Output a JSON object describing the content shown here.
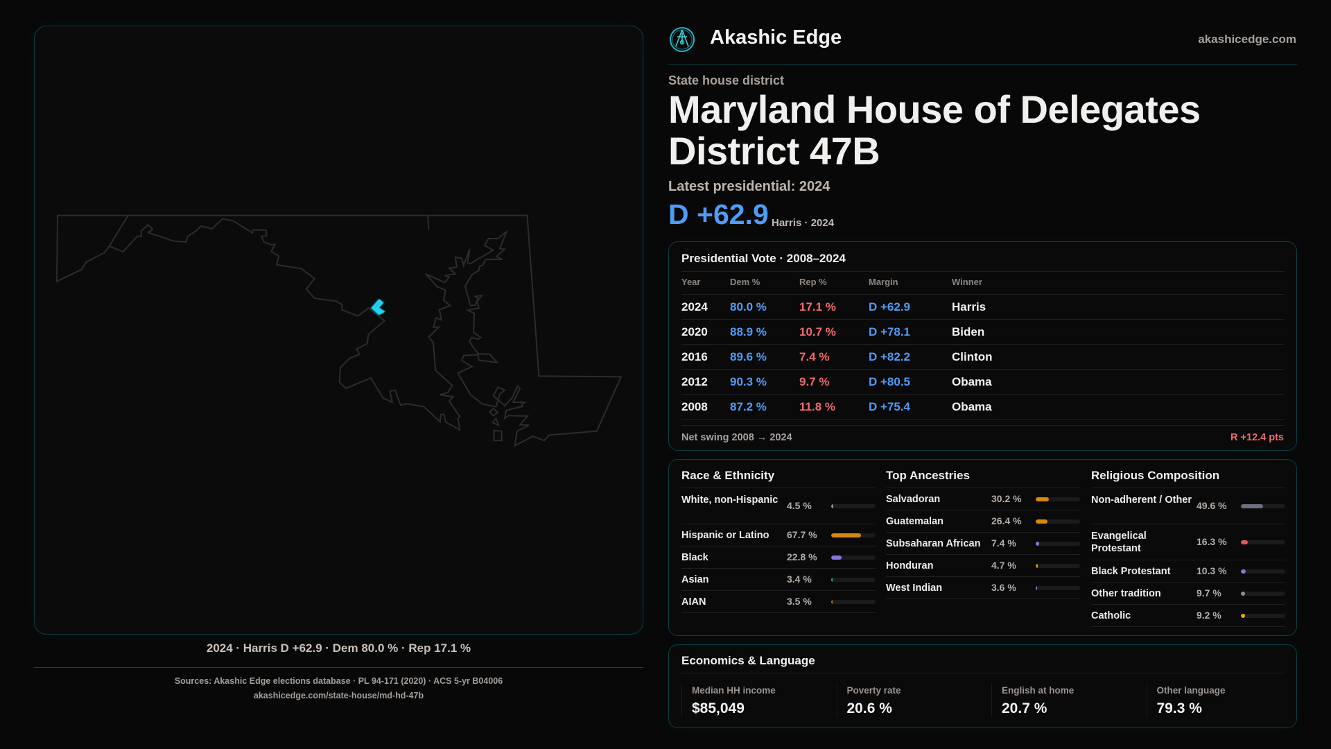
{
  "brand": {
    "name": "Akashic Edge",
    "site": "akashicedge.com",
    "logo_icon": "akashic-seal-icon"
  },
  "map": {
    "caption": "2024 · Harris D +62.9 · Dem 80.0 % · Rep 17.1 %",
    "highlight_color": "#22d3ee"
  },
  "header": {
    "kicker": "State house district",
    "title": "Maryland House of Delegates District 47B",
    "latest": "Latest presidential: 2024",
    "margin": "D +62.9",
    "margin_sub": "Harris · 2024"
  },
  "presidential": {
    "title": "Presidential Vote · 2008–2024",
    "columns": [
      "Year",
      "Dem %",
      "Rep %",
      "Margin",
      "Winner"
    ],
    "rows": [
      {
        "year": "2024",
        "dem": "80.0 %",
        "rep": "17.1 %",
        "margin": "D +62.9",
        "winner": "Harris"
      },
      {
        "year": "2020",
        "dem": "88.9 %",
        "rep": "10.7 %",
        "margin": "D +78.1",
        "winner": "Biden"
      },
      {
        "year": "2016",
        "dem": "89.6 %",
        "rep": "7.4 %",
        "margin": "D +82.2",
        "winner": "Clinton"
      },
      {
        "year": "2012",
        "dem": "90.3 %",
        "rep": "9.7 %",
        "margin": "D +80.5",
        "winner": "Obama"
      },
      {
        "year": "2008",
        "dem": "87.2 %",
        "rep": "11.8 %",
        "margin": "D +75.4",
        "winner": "Obama"
      }
    ],
    "swing_label": "Net swing 2008 → 2024",
    "swing_value": "R +12.4 pts"
  },
  "race": {
    "title": "Race & Ethnicity",
    "items": [
      {
        "label": "White, non-Hispanic",
        "value": "4.5 %",
        "pct": 4.5,
        "color": "#8a8f99"
      },
      {
        "label": "Hispanic or Latino",
        "value": "67.7 %",
        "pct": 67.7,
        "color": "#d68a0c"
      },
      {
        "label": "Black",
        "value": "22.8 %",
        "pct": 22.8,
        "color": "#8b74d8"
      },
      {
        "label": "Asian",
        "value": "3.4 %",
        "pct": 3.4,
        "color": "#2bb38a"
      },
      {
        "label": "AIAN",
        "value": "3.5 %",
        "pct": 3.5,
        "color": "#c9740f"
      }
    ]
  },
  "ancestry": {
    "title": "Top Ancestries",
    "items": [
      {
        "label": "Salvadoran",
        "value": "30.2 %",
        "pct": 30.2,
        "color": "#d68a0c"
      },
      {
        "label": "Guatemalan",
        "value": "26.4 %",
        "pct": 26.4,
        "color": "#d68a0c"
      },
      {
        "label": "Subsaharan African",
        "value": "7.4 %",
        "pct": 7.4,
        "color": "#8b74d8"
      },
      {
        "label": "Honduran",
        "value": "4.7 %",
        "pct": 4.7,
        "color": "#d68a0c"
      },
      {
        "label": "West Indian",
        "value": "3.6 %",
        "pct": 3.6,
        "color": "#8b74d8"
      }
    ]
  },
  "religion": {
    "title": "Religious Composition",
    "items": [
      {
        "label": "Non-adherent / Other",
        "value": "49.6 %",
        "pct": 49.6,
        "color": "#6b7080"
      },
      {
        "label": "Evangelical Protestant",
        "value": "16.3 %",
        "pct": 16.3,
        "color": "#e05a5a"
      },
      {
        "label": "Black Protestant",
        "value": "10.3 %",
        "pct": 10.3,
        "color": "#8b74d8"
      },
      {
        "label": "Other tradition",
        "value": "9.7 %",
        "pct": 9.7,
        "color": "#8a8f99"
      },
      {
        "label": "Catholic",
        "value": "9.2 %",
        "pct": 9.2,
        "color": "#e0a914"
      }
    ]
  },
  "economics": {
    "title": "Economics & Language",
    "stats": [
      {
        "label": "Median HH income",
        "value": "$85,049"
      },
      {
        "label": "Poverty rate",
        "value": "20.6 %"
      },
      {
        "label": "English at home",
        "value": "20.7 %"
      },
      {
        "label": "Other language",
        "value": "79.3 %"
      }
    ]
  },
  "footer": {
    "sources": "Sources: Akashic Edge elections database · PL 94-171 (2020) · ACS 5-yr B04006",
    "url": "akashicedge.com/state-house/md-hd-47b"
  },
  "colors": {
    "dem": "#4f9cf5",
    "rep": "#f06b6b",
    "accent": "#22d3ee",
    "border": "#0f3d45"
  }
}
